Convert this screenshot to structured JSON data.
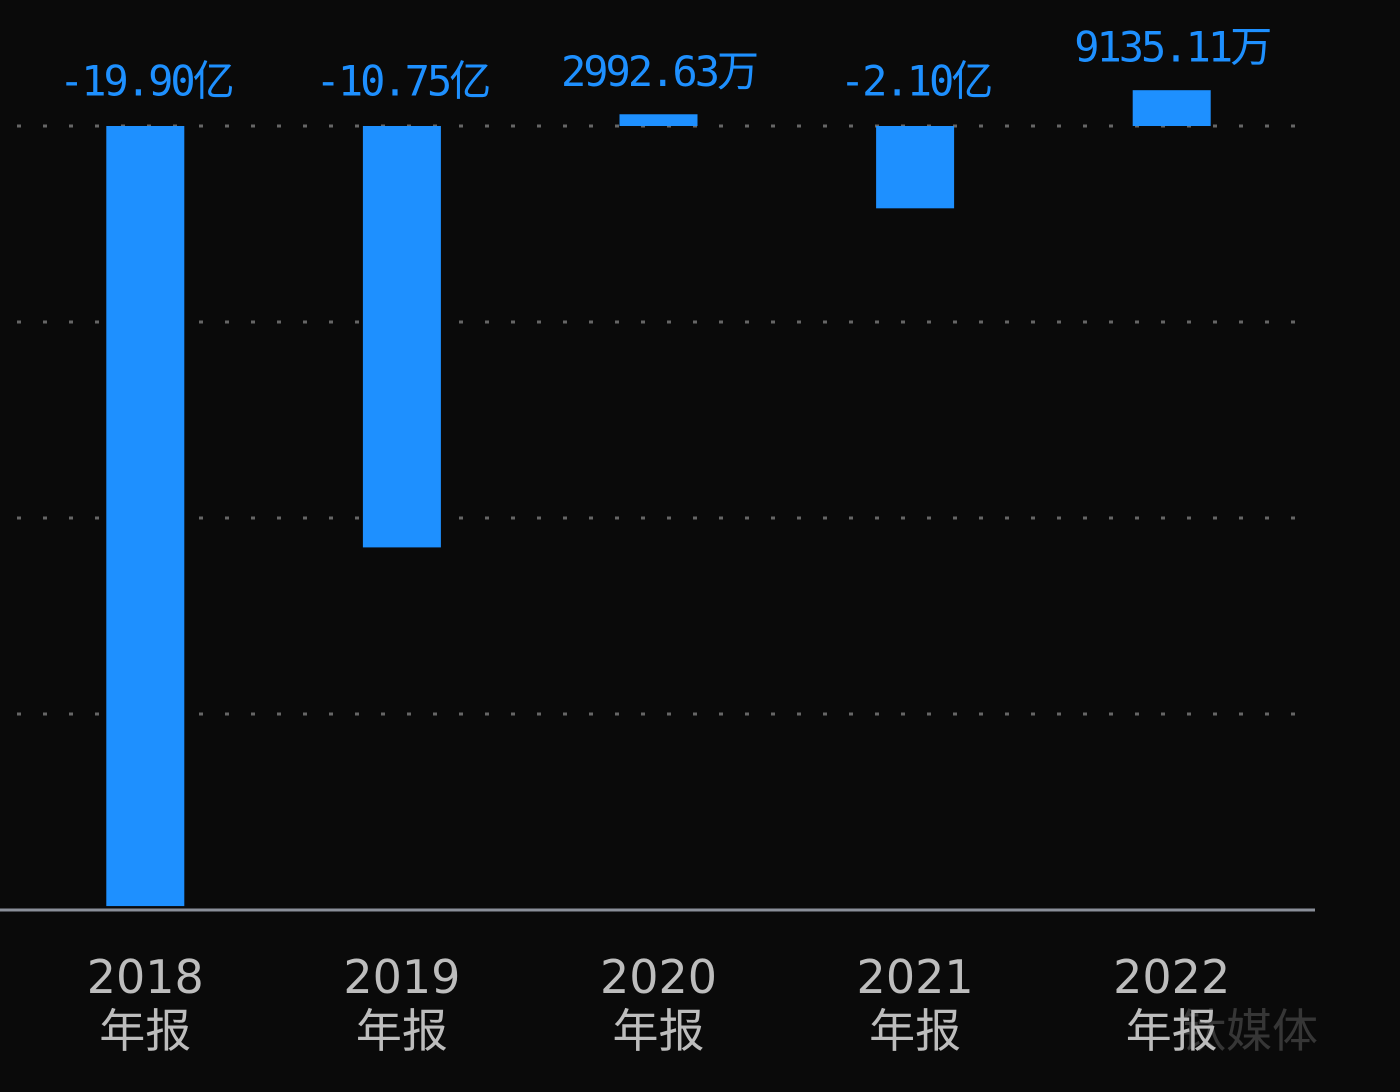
{
  "chart_data": {
    "type": "bar",
    "categories": [
      "2018 年报",
      "2019 年报",
      "2020 年报",
      "2021 年报",
      "2022 年报"
    ],
    "values": [
      -199000,
      -107500,
      2992.63,
      -21000,
      9135.11
    ],
    "value_labels": [
      "-19.90亿",
      "-10.75亿",
      "2992.63万",
      "-2.10亿",
      "9135.11万"
    ],
    "color": "#1e90ff",
    "ylim": [
      -200000,
      30000
    ],
    "yticks": [
      0,
      -50000,
      -100000,
      -150000
    ],
    "grid": true,
    "watermark": "钛媒体"
  }
}
